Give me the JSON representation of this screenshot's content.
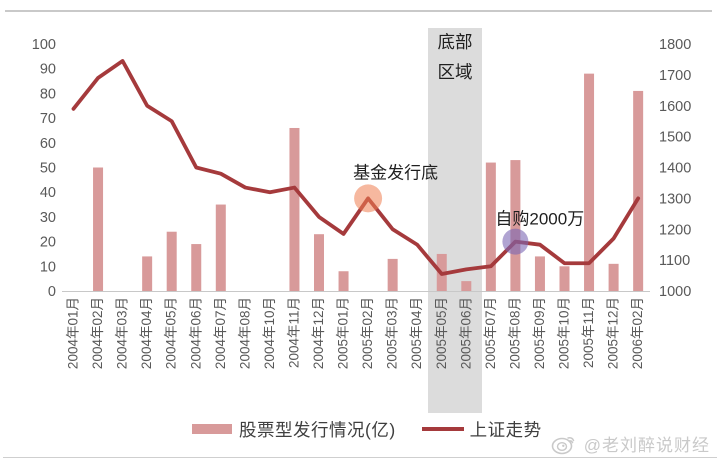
{
  "chart_data": {
    "type": "bar",
    "subtype": "combo-bar-line-dual-axis",
    "title": "",
    "categories": [
      "2004年01月",
      "2004年02月",
      "2004年03月",
      "2004年04月",
      "2004年05月",
      "2004年06月",
      "2004年07月",
      "2004年08月",
      "2004年10月",
      "2004年11月",
      "2004年12月",
      "2005年01月",
      "2005年02月",
      "2005年03月",
      "2005年04月",
      "2005年05月",
      "2005年06月",
      "2005年07月",
      "2005年08月",
      "2005年09月",
      "2005年10月",
      "2005年11月",
      "2005年12月",
      "2006年02月"
    ],
    "series": [
      {
        "name": "股票型发行情况(亿)",
        "type": "bar",
        "axis": "left",
        "color": "#d89a9a",
        "values": [
          null,
          50,
          null,
          14,
          24,
          19,
          35,
          null,
          null,
          66,
          23,
          8,
          null,
          13,
          null,
          15,
          4,
          52,
          53,
          14,
          10,
          88,
          11,
          81
        ]
      },
      {
        "name": "上证走势",
        "type": "line",
        "axis": "right",
        "color": "#a53a3c",
        "values": [
          1590,
          1690,
          1745,
          1600,
          1550,
          1400,
          1380,
          1335,
          1320,
          1335,
          1240,
          1185,
          1300,
          1200,
          1150,
          1055,
          1070,
          1080,
          1160,
          1150,
          1090,
          1090,
          1170,
          1300
        ]
      }
    ],
    "left_axis": {
      "min": 0,
      "max": 100,
      "step": 10,
      "ticks": [
        0,
        10,
        20,
        30,
        40,
        50,
        60,
        70,
        80,
        90,
        100
      ]
    },
    "right_axis": {
      "min": 1000,
      "max": 1800,
      "step": 100,
      "ticks": [
        1000,
        1100,
        1200,
        1300,
        1400,
        1500,
        1600,
        1700,
        1800
      ]
    },
    "grid": "none",
    "legend_position": "bottom",
    "highlight_band": {
      "label_lines": [
        "底部",
        "区域"
      ],
      "categories": [
        "2005年05月",
        "2005年06月"
      ],
      "start_index": 15,
      "end_index": 16,
      "color": "#dcdcdc"
    },
    "annotations": [
      {
        "text": "基金发行底",
        "target_category": "2005年02月",
        "target_index": 12,
        "series": "上证走势",
        "marker": "orange-circle",
        "marker_color": "rgba(238,125,80,0.55)"
      },
      {
        "text": "自购2000万",
        "target_category": "2005年08月",
        "target_index": 18,
        "series": "上证走势",
        "marker": "purple-circle",
        "marker_color": "rgba(124,104,180,0.6)"
      }
    ]
  },
  "watermark": {
    "text": "@老刘醉说财经",
    "icon": "weibo-logo-icon"
  },
  "colors": {
    "bar": "#d89a9a",
    "line": "#a53a3c",
    "band": "#dcdcdc",
    "axis_text": "#595959",
    "annotation_text": "#1f1f1f",
    "baseline": "#c8c8c8",
    "watermark": "#c9c9c9"
  }
}
